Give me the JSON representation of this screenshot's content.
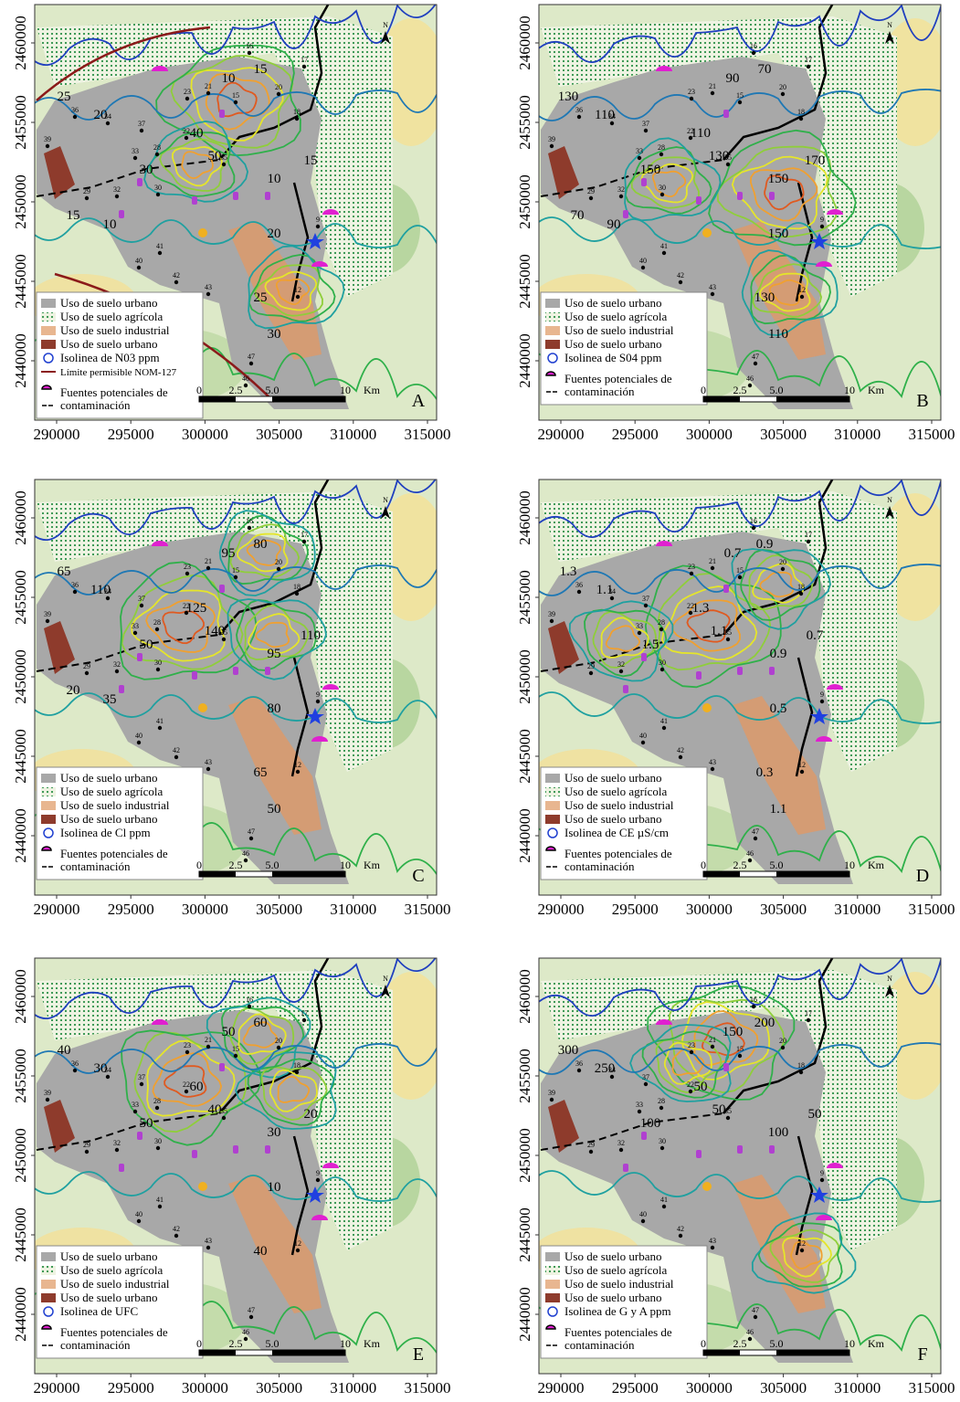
{
  "x_ticks": [
    290000,
    295000,
    300000,
    305000,
    310000,
    315000
  ],
  "y_ticks": [
    2440000,
    2445000,
    2450000,
    2455000,
    2460000
  ],
  "scale_labels": [
    "0",
    "2.5",
    "5.0",
    "10",
    "Km"
  ],
  "north": "N",
  "wells": [
    "16",
    "17",
    "23",
    "21",
    "15",
    "37",
    "36",
    "39",
    "33",
    "28",
    "22",
    "35",
    "30",
    "29",
    "32",
    "40",
    "41",
    "42",
    "43",
    "47",
    "46",
    "9",
    "12",
    "34",
    "20",
    "18"
  ],
  "panels": [
    {
      "letter": "A",
      "legend": [
        "Uso de suelo urbano",
        "Uso de suelo agrícola",
        "Uso de suelo industrial",
        "Uso de suelo urbano",
        "Isolinea de N03 ppm",
        "Límite permisible NOM-127"
      ],
      "sources": [
        "Fuentes potenciales de",
        "contaminación"
      ],
      "isolines": [
        10,
        15,
        20,
        25,
        30,
        40,
        50,
        10,
        15,
        20,
        25,
        30,
        10,
        15
      ]
    },
    {
      "letter": "B",
      "legend": [
        "Uso de suelo urbano",
        "Uso de suelo agrícola",
        "Uso de suelo industrial",
        "Uso de suelo urbano",
        "Isolinea de S04 ppm"
      ],
      "sources": [
        "Fuentes potenciales de",
        "contaminación"
      ],
      "isolines": [
        90,
        70,
        110,
        130,
        150,
        110,
        130,
        150,
        170,
        150,
        130,
        110,
        90,
        70
      ]
    },
    {
      "letter": "C",
      "legend": [
        "Uso de suelo urbano",
        "Uso de suelo agrícola",
        "Uso de suelo industrial",
        "Uso de suelo urbano",
        "Isolinea de Cl ppm"
      ],
      "sources": [
        "Fuentes potenciales de",
        "contaminación"
      ],
      "isolines": [
        95,
        80,
        110,
        65,
        50,
        125,
        140,
        95,
        110,
        80,
        65,
        50,
        35,
        20
      ]
    },
    {
      "letter": "D",
      "legend": [
        "Uso de suelo urbano",
        "Uso de suelo agrícola",
        "Uso de suelo industrial",
        "Uso de suelo urbano",
        "Isolinea de CE  µS/cm"
      ],
      "sources": [
        "Fuentes potenciales de",
        "contaminación"
      ],
      "isolines": [
        0.7,
        0.9,
        1.1,
        1.3,
        1.5,
        1.3,
        1.1,
        0.9,
        0.7,
        0.5,
        0.3,
        1.1
      ]
    },
    {
      "letter": "E",
      "legend": [
        "Uso de suelo urbano",
        "Uso de suelo agrícola",
        "Uso de suelo industrial",
        "Uso de suelo urbano",
        "Isolinea de UFC"
      ],
      "sources": [
        "Fuentes potenciales de",
        "contaminación"
      ],
      "isolines": [
        50,
        60,
        30,
        40,
        50,
        60,
        40,
        30,
        20,
        10,
        40
      ]
    },
    {
      "letter": "F",
      "legend": [
        "Uso de suelo urbano",
        "Uso de suelo agrícola",
        "Uso de suelo industrial",
        "Uso de suelo urbano",
        "Isolinea de G y A ppm"
      ],
      "sources": [
        "Fuentes potenciales de",
        "contaminación"
      ],
      "isolines": [
        150,
        200,
        250,
        300,
        100,
        50,
        50,
        100,
        50
      ]
    }
  ]
}
